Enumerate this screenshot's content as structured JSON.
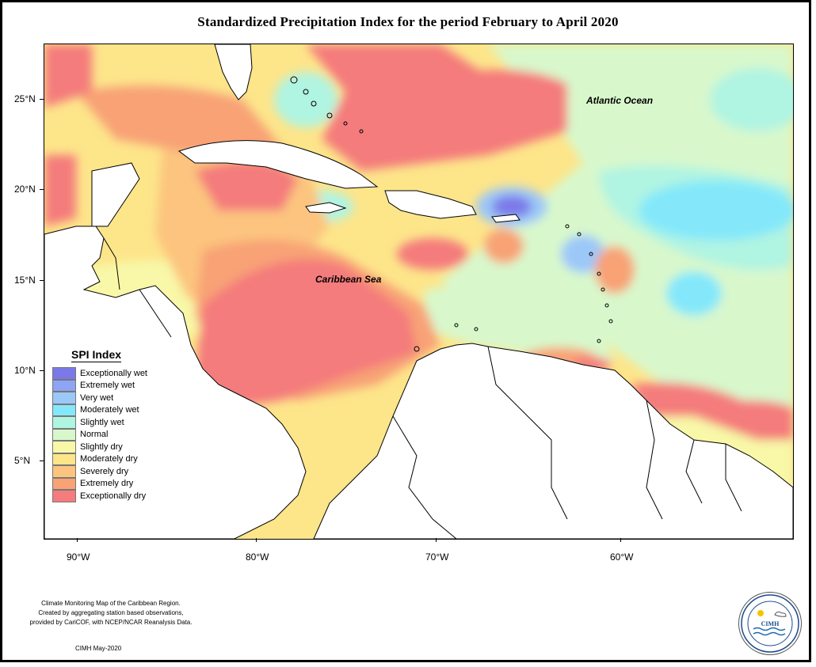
{
  "title": "Standardized Precipitation Index for the period February to April 2020",
  "axes": {
    "y_ticks": [
      "25°N",
      "20°N",
      "15°N",
      "10°N",
      "5°N"
    ],
    "x_ticks": [
      "90°W",
      "80°W",
      "70°W",
      "60°W"
    ]
  },
  "labels": {
    "atlantic": "Atlantic Ocean",
    "caribbean": "Caribbean Sea"
  },
  "legend": {
    "title": "SPI Index",
    "items": [
      {
        "label": "Exceptionally wet",
        "color": "#7b79e8"
      },
      {
        "label": "Extremely wet",
        "color": "#8ea4f4"
      },
      {
        "label": "Very wet",
        "color": "#9cc8f8"
      },
      {
        "label": "Moderately wet",
        "color": "#84e8fa"
      },
      {
        "label": "Slightly wet",
        "color": "#b0f4e2"
      },
      {
        "label": "Normal",
        "color": "#d8f8cc"
      },
      {
        "label": "Slightly dry",
        "color": "#f8f8a8"
      },
      {
        "label": "Moderately dry",
        "color": "#fde58a"
      },
      {
        "label": "Severely dry",
        "color": "#fcc47e"
      },
      {
        "label": "Extremely dry",
        "color": "#f8a276"
      },
      {
        "label": "Exceptionally dry",
        "color": "#f47c7c"
      }
    ]
  },
  "credits": {
    "line1": "Climate Monitoring Map of the Caribbean Region.",
    "line2": "Created by aggregating station based observations,",
    "line3": "provided by CariCOF, with NCEP/NCAR Reanalysis Data.",
    "date": "CIMH May-2020"
  },
  "logo": {
    "text": "CIMH",
    "ring_text": "Caribbean Institute for Meteorology and Hydrology"
  }
}
